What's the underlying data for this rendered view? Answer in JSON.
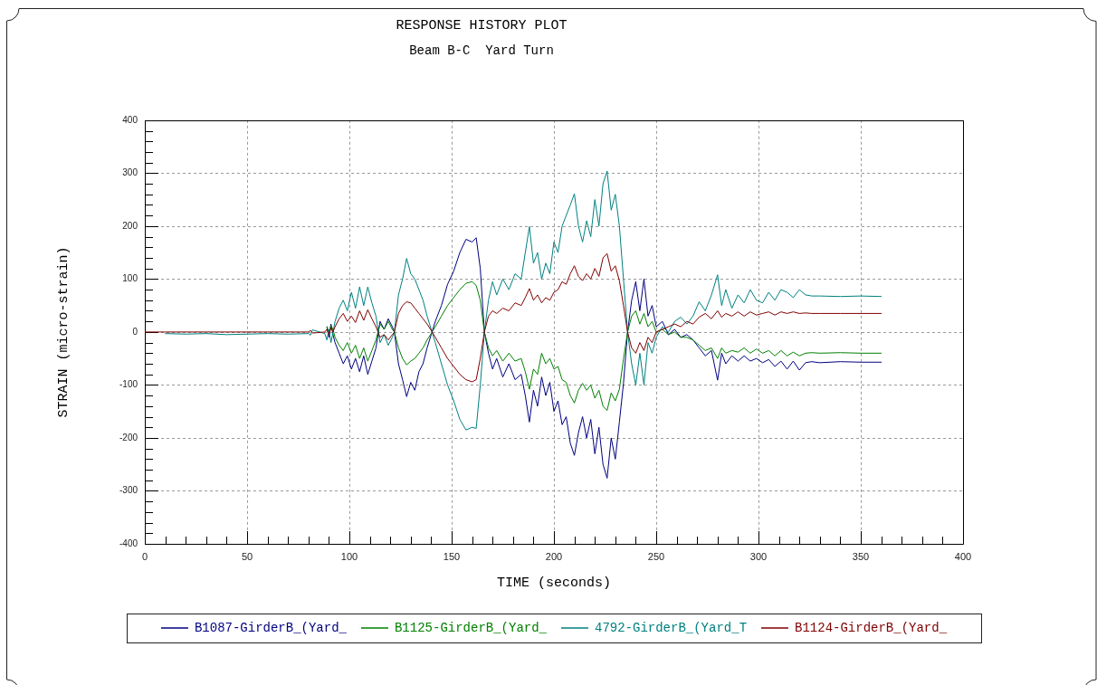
{
  "chart_data": {
    "type": "line",
    "title": "RESPONSE HISTORY PLOT",
    "subtitle": "Beam B-C  Yard Turn",
    "xlabel": "TIME (seconds)",
    "ylabel": "STRAIN (micro-strain)",
    "x": [
      0,
      10,
      20,
      30,
      40,
      50,
      60,
      70,
      80,
      81,
      82,
      88,
      89,
      90,
      91,
      92,
      93,
      95,
      97,
      99,
      101,
      103,
      105,
      107,
      109,
      111,
      113,
      115,
      117,
      119,
      121,
      122,
      124,
      126,
      128,
      130,
      132,
      134,
      136,
      138,
      140,
      142,
      145,
      148,
      151,
      154,
      157,
      160,
      162,
      164,
      166,
      168,
      170,
      172,
      175,
      178,
      181,
      184,
      186,
      188,
      190,
      192,
      194,
      196,
      198,
      200,
      202,
      204,
      206,
      208,
      210,
      212,
      214,
      216,
      218,
      220,
      222,
      224,
      226,
      228,
      230,
      232,
      234,
      236,
      238,
      240,
      242,
      244,
      246,
      248,
      250,
      253,
      256,
      259,
      262,
      265,
      268,
      271,
      274,
      277,
      280,
      282,
      284,
      287,
      290,
      293,
      296,
      299,
      302,
      305,
      308,
      311,
      314,
      317,
      320,
      323,
      326,
      330,
      340,
      350,
      360
    ],
    "series": [
      {
        "name": "B1087-GirderB_(Yard_",
        "color": "#000080",
        "values": [
          null,
          null,
          null,
          null,
          null,
          null,
          null,
          null,
          null,
          null,
          null,
          null,
          10,
          -10,
          15,
          -5,
          -20,
          -40,
          -60,
          -45,
          -70,
          -50,
          -75,
          -45,
          -80,
          -55,
          -30,
          20,
          5,
          25,
          10,
          0,
          -60,
          -90,
          -122,
          -95,
          -110,
          -75,
          -60,
          -30,
          -5,
          20,
          50,
          90,
          115,
          150,
          175,
          170,
          178,
          120,
          0,
          -40,
          -70,
          -50,
          -85,
          -60,
          -90,
          -80,
          -120,
          -170,
          -110,
          -140,
          -85,
          -120,
          -95,
          -150,
          -130,
          -175,
          -160,
          -210,
          -233,
          -190,
          -160,
          -200,
          -165,
          -230,
          -180,
          -250,
          -276,
          -200,
          -240,
          -170,
          -97,
          0,
          60,
          95,
          40,
          100,
          30,
          50,
          10,
          20,
          -5,
          5,
          -10,
          -5,
          -15,
          -30,
          -45,
          -35,
          -91,
          -40,
          -60,
          -45,
          -55,
          -45,
          -55,
          -50,
          -58,
          -52,
          -65,
          -55,
          -70,
          -55,
          -72,
          -58,
          -56,
          -58,
          -56,
          -57,
          -57
        ]
      },
      {
        "name": "B1125-GirderB_(Yard_",
        "color": "#008000",
        "values": [
          null,
          null,
          null,
          null,
          null,
          null,
          null,
          null,
          null,
          null,
          null,
          null,
          10,
          0,
          12,
          5,
          -10,
          -25,
          -35,
          -20,
          -40,
          -25,
          -50,
          -30,
          -55,
          -35,
          -15,
          15,
          5,
          20,
          5,
          0,
          -30,
          -50,
          -62,
          -55,
          -50,
          -40,
          -30,
          -15,
          -3,
          10,
          30,
          50,
          65,
          80,
          92,
          95,
          88,
          60,
          0,
          -30,
          -45,
          -35,
          -55,
          -40,
          -55,
          -50,
          -75,
          -108,
          -70,
          -80,
          -40,
          -60,
          -50,
          -70,
          -65,
          -90,
          -95,
          -120,
          -134,
          -110,
          -97,
          -110,
          -100,
          -125,
          -110,
          -140,
          -148,
          -115,
          -130,
          -108,
          -51,
          0,
          30,
          40,
          15,
          35,
          10,
          20,
          0,
          5,
          -5,
          0,
          -10,
          -10,
          -15,
          -25,
          -35,
          -30,
          -50,
          -30,
          -40,
          -35,
          -38,
          -30,
          -40,
          -32,
          -40,
          -35,
          -45,
          -35,
          -45,
          -38,
          -45,
          -40,
          -39,
          -40,
          -39,
          -40,
          -40
        ]
      },
      {
        "name": "4792-GirderB_(Yard_T",
        "color": "#008080",
        "values": [
          null,
          -3,
          -4,
          -3,
          -5,
          -4,
          -3,
          -4,
          -3,
          -6,
          4,
          -3,
          -15,
          5,
          -20,
          0,
          20,
          45,
          60,
          40,
          75,
          45,
          85,
          50,
          85,
          55,
          30,
          -20,
          -5,
          -25,
          -10,
          0,
          70,
          100,
          139,
          110,
          100,
          80,
          60,
          30,
          5,
          -20,
          -60,
          -100,
          -130,
          -165,
          -185,
          -180,
          -182,
          -100,
          0,
          60,
          95,
          70,
          100,
          80,
          110,
          100,
          150,
          199,
          130,
          150,
          100,
          130,
          110,
          170,
          150,
          200,
          220,
          240,
          261,
          200,
          170,
          210,
          180,
          250,
          200,
          280,
          304,
          230,
          260,
          200,
          100,
          0,
          -60,
          -100,
          -40,
          -100,
          -20,
          -40,
          -10,
          10,
          0,
          20,
          28,
          15,
          30,
          57,
          40,
          70,
          108,
          50,
          80,
          45,
          70,
          55,
          80,
          60,
          55,
          75,
          60,
          80,
          75,
          65,
          80,
          70,
          68,
          68,
          67,
          68,
          67
        ]
      },
      {
        "name": "B1124-GirderB_(Yard_",
        "color": "#800000",
        "values": [
          0,
          0,
          0,
          0,
          0,
          0,
          0,
          0,
          0,
          3,
          -2,
          0,
          5,
          -5,
          8,
          0,
          10,
          25,
          35,
          20,
          30,
          18,
          40,
          22,
          42,
          25,
          10,
          -10,
          -5,
          -15,
          -5,
          0,
          35,
          50,
          57,
          55,
          45,
          35,
          25,
          15,
          3,
          -10,
          -30,
          -50,
          -65,
          -80,
          -90,
          -94,
          -90,
          -50,
          0,
          30,
          40,
          35,
          45,
          40,
          55,
          50,
          65,
          82,
          60,
          70,
          55,
          65,
          60,
          75,
          80,
          95,
          90,
          110,
          125,
          105,
          97,
          110,
          100,
          120,
          105,
          140,
          148,
          115,
          125,
          97,
          50,
          0,
          -30,
          -40,
          -20,
          -35,
          -10,
          -20,
          0,
          5,
          10,
          15,
          10,
          20,
          15,
          28,
          35,
          25,
          40,
          28,
          35,
          30,
          38,
          30,
          38,
          32,
          35,
          38,
          32,
          38,
          35,
          38,
          35,
          36,
          35,
          35,
          35,
          35,
          35
        ]
      }
    ],
    "xlim": [
      0,
      400
    ],
    "ylim": [
      -400,
      400
    ],
    "xticks": [
      0,
      {
        "value": 10,
        "label": null
      },
      {
        "value": 20,
        "label": null
      },
      {
        "value": 30,
        "label": null
      },
      {
        "value": 40,
        "label": null
      },
      50,
      {
        "value": 60,
        "label": null
      },
      {
        "value": 70,
        "label": null
      },
      {
        "value": 80,
        "label": null
      },
      {
        "value": 90,
        "label": null
      },
      100,
      {
        "value": 110,
        "label": null
      },
      {
        "value": 120,
        "label": null
      },
      {
        "value": 130,
        "label": null
      },
      {
        "value": 140,
        "label": null
      },
      150,
      {
        "value": 160,
        "label": null
      },
      {
        "value": 170,
        "label": null
      },
      {
        "value": 180,
        "label": null
      },
      {
        "value": 190,
        "label": null
      },
      200,
      {
        "value": 210,
        "label": null
      },
      {
        "value": 220,
        "label": null
      },
      {
        "value": 230,
        "label": null
      },
      {
        "value": 240,
        "label": null
      },
      250,
      {
        "value": 260,
        "label": null
      },
      {
        "value": 270,
        "label": null
      },
      {
        "value": 280,
        "label": null
      },
      {
        "value": 290,
        "label": null
      },
      300,
      {
        "value": 310,
        "label": null
      },
      {
        "value": 320,
        "label": null
      },
      {
        "value": 330,
        "label": null
      },
      {
        "value": 340,
        "label": null
      },
      350,
      {
        "value": 360,
        "label": null
      },
      {
        "value": 370,
        "label": null
      },
      {
        "value": 380,
        "label": null
      },
      {
        "value": 390,
        "label": null
      },
      400
    ],
    "yticks": [
      -400,
      {
        "value": -380,
        "label": null
      },
      {
        "value": -360,
        "label": null
      },
      {
        "value": -340,
        "label": null
      },
      {
        "value": -320,
        "label": null
      },
      -300,
      {
        "value": -280,
        "label": null
      },
      {
        "value": -260,
        "label": null
      },
      {
        "value": -240,
        "label": null
      },
      {
        "value": -220,
        "label": null
      },
      -200,
      {
        "value": -180,
        "label": null
      },
      {
        "value": -160,
        "label": null
      },
      {
        "value": -140,
        "label": null
      },
      {
        "value": -120,
        "label": null
      },
      -100,
      {
        "value": -80,
        "label": null
      },
      {
        "value": -60,
        "label": null
      },
      {
        "value": -40,
        "label": null
      },
      {
        "value": -20,
        "label": null
      },
      0,
      {
        "value": 20,
        "label": null
      },
      {
        "value": 40,
        "label": null
      },
      {
        "value": 60,
        "label": null
      },
      {
        "value": 80,
        "label": null
      },
      100,
      {
        "value": 120,
        "label": null
      },
      {
        "value": 140,
        "label": null
      },
      {
        "value": 160,
        "label": null
      },
      {
        "value": 180,
        "label": null
      },
      200,
      {
        "value": 220,
        "label": null
      },
      {
        "value": 240,
        "label": null
      },
      {
        "value": 260,
        "label": null
      },
      {
        "value": 280,
        "label": null
      },
      300,
      {
        "value": 320,
        "label": null
      },
      {
        "value": 340,
        "label": null
      },
      {
        "value": 360,
        "label": null
      },
      {
        "value": 380,
        "label": null
      },
      400
    ],
    "grid": true,
    "legend": "bottom"
  }
}
